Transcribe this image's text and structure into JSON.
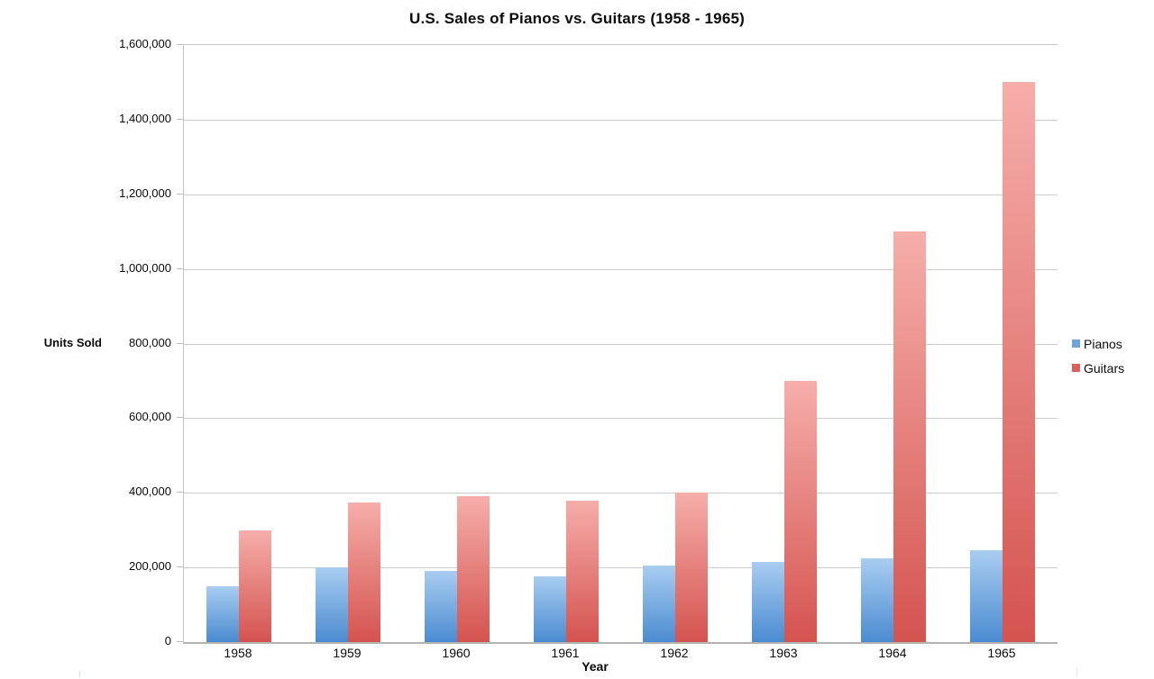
{
  "chart_data": {
    "type": "bar",
    "title": "U.S. Sales of Pianos vs. Guitars (1958 - 1965)",
    "xlabel": "Year",
    "ylabel": "Units Sold",
    "categories": [
      "1958",
      "1959",
      "1960",
      "1961",
      "1962",
      "1963",
      "1964",
      "1965"
    ],
    "series": [
      {
        "name": "Pianos",
        "values": [
          150000,
          200000,
          190000,
          175000,
          205000,
          215000,
          225000,
          245000
        ],
        "color_top": "#a9cdf1",
        "color_bottom": "#4b8bd1",
        "legend_color": "#6fa3dc"
      },
      {
        "name": "Guitars",
        "values": [
          300000,
          375000,
          390000,
          380000,
          400000,
          700000,
          1100000,
          1500000
        ],
        "color_top": "#f6aeaa",
        "color_bottom": "#d4534f",
        "legend_color": "#dc615d"
      }
    ],
    "ylim": [
      0,
      1600000
    ],
    "ytick_step": 200000,
    "ytick_labels": [
      "0",
      "200,000",
      "400,000",
      "600,000",
      "800,000",
      "1,000,000",
      "1,200,000",
      "1,400,000",
      "1,600,000"
    ],
    "grid": true,
    "legend_position": "right",
    "colors": {
      "gridline": "#cccccc",
      "axis": "#b4b4b4",
      "background": "#ffffff",
      "text": "#0b0b0b"
    }
  }
}
